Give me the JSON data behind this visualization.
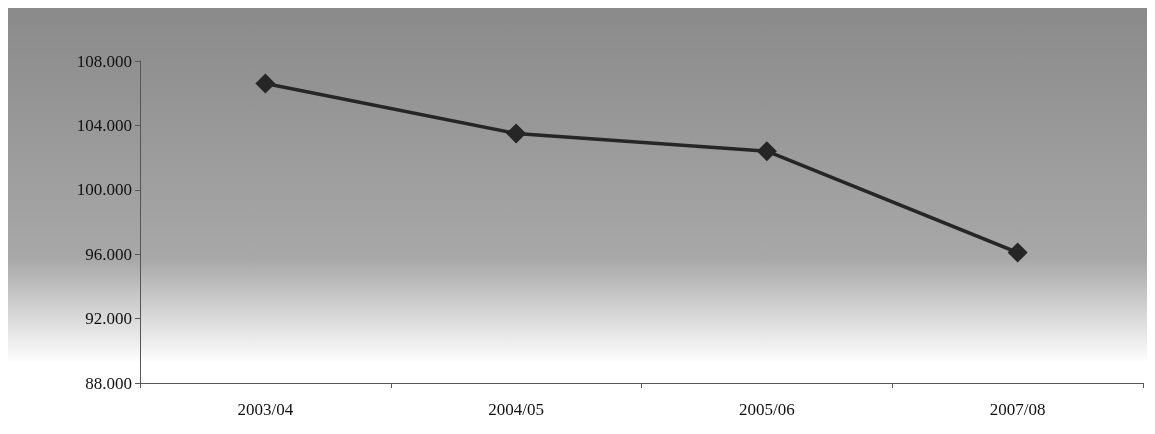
{
  "chart_data": {
    "type": "line",
    "categories": [
      "2003/04",
      "2004/05",
      "2005/06",
      "2007/08"
    ],
    "series": [
      {
        "color": "#262626",
        "values": [
          106600,
          103500,
          102400,
          96100
        ]
      }
    ],
    "ylim": [
      88000,
      108000
    ],
    "yticks": [
      {
        "value": 88000,
        "label": "88.000"
      },
      {
        "value": 92000,
        "label": "92.000"
      },
      {
        "value": 96000,
        "label": "96.000"
      },
      {
        "value": 100000,
        "label": "100.000"
      },
      {
        "value": 104000,
        "label": "104.000"
      },
      {
        "value": 108000,
        "label": "108.000"
      }
    ],
    "marker": "diamond",
    "line_style": "solid"
  }
}
